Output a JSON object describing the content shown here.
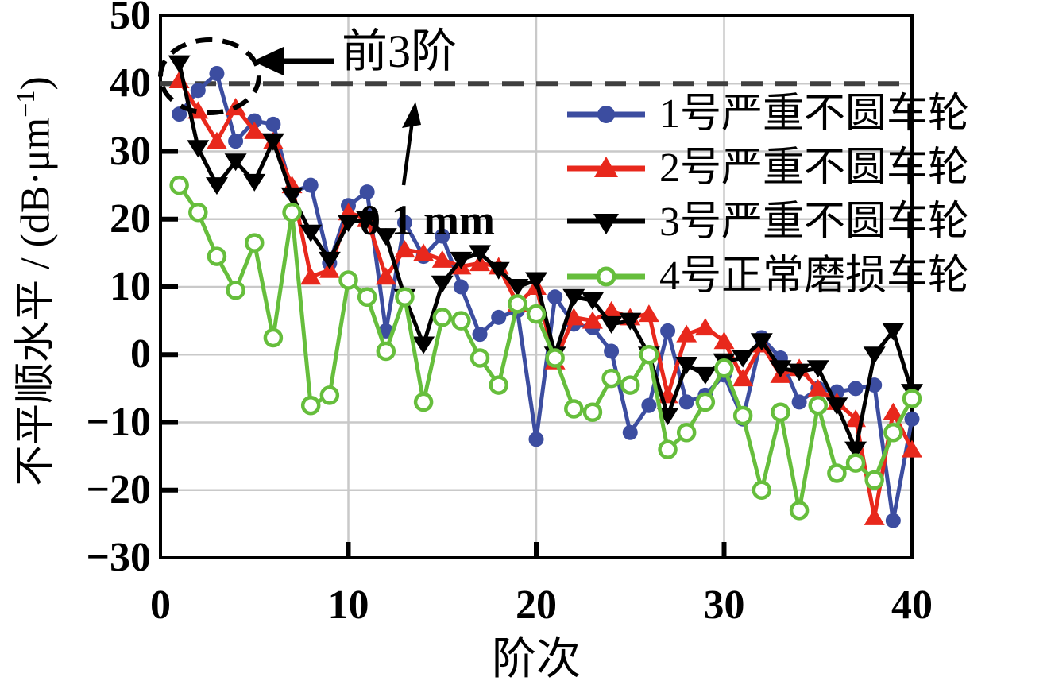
{
  "figure": {
    "xlabel": "阶次",
    "ylabel_prefix": "不平顺水平 / (dB·μm",
    "ylabel_sup": "−1",
    "ylabel_suffix": ")",
    "annotation_front3": "前3阶",
    "colors": {
      "frame": "#000000",
      "grid": "#c9c9c9",
      "reference_line": "#3f3f3f",
      "series1": "#3c4da0",
      "series2": "#e8281c",
      "series3": "#000000",
      "series4": "#66be3c"
    }
  },
  "chart_data": {
    "type": "line",
    "title": "",
    "xlabel": "阶次",
    "ylabel": "不平顺水平 / (dB·μm−1)",
    "xlim": [
      0,
      40
    ],
    "ylim": [
      -30,
      50
    ],
    "x_tick_labels": [
      "0",
      "10",
      "20",
      "30",
      "40"
    ],
    "y_tick_labels": [
      "50",
      "40",
      "30",
      "20",
      "10",
      "0",
      "−10",
      "−20",
      "−30"
    ],
    "grid": true,
    "legend_position": "upper right",
    "reference_line": {
      "value": 40,
      "style": "dashed",
      "color": "#3f3f3f",
      "label": "0.1 mm"
    },
    "annotations": {
      "front3": {
        "label": "前3阶",
        "ellipse_center_x": 2,
        "ellipse_center_y": 42
      },
      "ref_arrow_points_to_value": 40
    },
    "x": [
      1,
      2,
      3,
      4,
      5,
      6,
      7,
      8,
      9,
      10,
      11,
      12,
      13,
      14,
      15,
      16,
      17,
      18,
      19,
      20,
      21,
      22,
      23,
      24,
      25,
      26,
      27,
      28,
      29,
      30,
      31,
      32,
      33,
      34,
      35,
      36,
      37,
      38,
      39,
      40
    ],
    "series": [
      {
        "name": "1号严重不圆车轮",
        "color": "#3c4da0",
        "marker": "circle",
        "values": [
          35.5,
          39,
          41.5,
          31.5,
          34.5,
          34,
          24,
          25,
          13.5,
          22,
          24,
          3.5,
          19.5,
          14.5,
          17.5,
          10,
          3,
          5.5,
          6.5,
          -12.5,
          8.5,
          4.5,
          4,
          0.5,
          -11.5,
          -7.5,
          3.5,
          -7,
          -6,
          -3,
          -9.5,
          2.5,
          -0.5,
          -7,
          -5,
          -5.5,
          -5,
          -4.5,
          -24.5,
          -9.5
        ]
      },
      {
        "name": "2号严重不圆车轮",
        "color": "#e8281c",
        "marker": "triangle-up",
        "values": [
          40.5,
          36,
          31.5,
          36.5,
          33,
          31.5,
          25,
          11.5,
          12.5,
          21,
          20,
          11.5,
          15.5,
          15,
          14,
          13,
          13.5,
          13,
          7.5,
          10,
          -1,
          5.5,
          5,
          6.5,
          5.5,
          6,
          -6,
          3,
          4,
          2,
          -3.5,
          1.5,
          -3,
          -2,
          -5,
          -7,
          -9.5,
          -24,
          -8.5,
          -14
        ]
      },
      {
        "name": "3号严重不圆车轮",
        "color": "#000000",
        "marker": "triangle-down",
        "values": [
          43,
          30.5,
          25,
          28.5,
          25.5,
          31.5,
          23.5,
          18,
          14,
          19.5,
          20,
          17.5,
          8.5,
          1.5,
          10.5,
          14,
          15,
          12.5,
          10,
          11,
          0,
          8.5,
          8,
          4.5,
          5,
          0,
          -9,
          -1.5,
          -3,
          -1,
          -0.5,
          2,
          -2,
          -2.5,
          -2,
          -7.5,
          -14,
          0,
          3.5,
          -5.5
        ]
      },
      {
        "name": "4号正常磨损车轮",
        "color": "#66be3c",
        "marker": "circle-open",
        "values": [
          25,
          21,
          14.5,
          9.5,
          16.5,
          2.5,
          21,
          -7.5,
          -6,
          11,
          8.5,
          0.5,
          8.5,
          -7,
          5.5,
          5,
          -0.5,
          -4.5,
          7.5,
          6,
          -0.5,
          -8,
          -8.5,
          -3.5,
          -4.5,
          0,
          -14,
          -11.5,
          -7,
          -2,
          -9,
          -20,
          -8.5,
          -23,
          -7.5,
          -17.5,
          -16,
          -18.5,
          -11.5,
          -6.5
        ]
      }
    ]
  }
}
